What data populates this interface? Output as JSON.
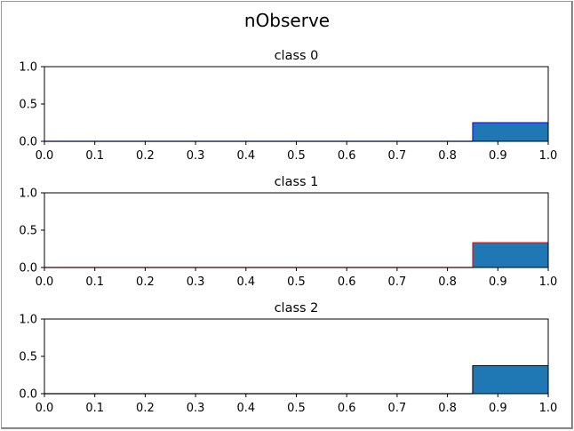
{
  "figure_title": "nObserve",
  "chart_data": [
    {
      "type": "bar",
      "title": "class 0",
      "xlim": [
        0.0,
        1.0
      ],
      "ylim": [
        0.0,
        1.0
      ],
      "xticks": [
        "0.0",
        "0.1",
        "0.2",
        "0.3",
        "0.4",
        "0.5",
        "0.6",
        "0.7",
        "0.8",
        "0.9",
        "1.0"
      ],
      "yticks": [
        "0.0",
        "0.5",
        "1.0"
      ],
      "bins": [
        {
          "x0": 0.0,
          "x1": 0.85,
          "value": 0.0
        },
        {
          "x0": 0.85,
          "x1": 1.0,
          "value": 0.25
        }
      ],
      "fill_color": "#1f77b4",
      "edge_color": "#0000ff"
    },
    {
      "type": "bar",
      "title": "class 1",
      "xlim": [
        0.0,
        1.0
      ],
      "ylim": [
        0.0,
        1.0
      ],
      "xticks": [
        "0.0",
        "0.1",
        "0.2",
        "0.3",
        "0.4",
        "0.5",
        "0.6",
        "0.7",
        "0.8",
        "0.9",
        "1.0"
      ],
      "yticks": [
        "0.0",
        "0.5",
        "1.0"
      ],
      "bins": [
        {
          "x0": 0.0,
          "x1": 0.85,
          "value": 0.0
        },
        {
          "x0": 0.85,
          "x1": 1.0,
          "value": 0.333
        }
      ],
      "fill_color": "#1f77b4",
      "edge_color": "#ff0000"
    },
    {
      "type": "bar",
      "title": "class 2",
      "xlim": [
        0.0,
        1.0
      ],
      "ylim": [
        0.0,
        1.0
      ],
      "xticks": [
        "0.0",
        "0.1",
        "0.2",
        "0.3",
        "0.4",
        "0.5",
        "0.6",
        "0.7",
        "0.8",
        "0.9",
        "1.0"
      ],
      "yticks": [
        "0.0",
        "0.5",
        "1.0"
      ],
      "bins": [
        {
          "x0": 0.0,
          "x1": 0.85,
          "value": 0.0
        },
        {
          "x0": 0.85,
          "x1": 1.0,
          "value": 0.375
        }
      ],
      "fill_color": "#1f77b4",
      "edge_color": "#000000"
    }
  ]
}
